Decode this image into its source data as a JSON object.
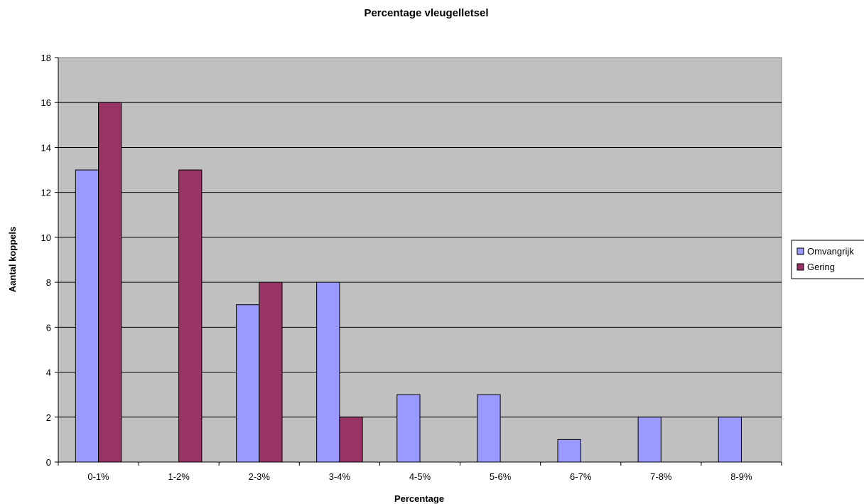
{
  "chart_data": {
    "type": "bar",
    "title": "Percentage vleugelletsel",
    "xlabel": "Percentage",
    "ylabel": "Aantal koppels",
    "categories": [
      "0-1%",
      "1-2%",
      "2-3%",
      "3-4%",
      "4-5%",
      "5-6%",
      "6-7%",
      "7-8%",
      "8-9%"
    ],
    "series": [
      {
        "name": "Omvangrijk",
        "color": "#9999ff",
        "values": [
          13,
          0,
          7,
          8,
          3,
          3,
          1,
          2,
          2
        ]
      },
      {
        "name": "Gering",
        "color": "#993366",
        "values": [
          16,
          13,
          8,
          2,
          0,
          0,
          0,
          0,
          0
        ]
      }
    ],
    "ylim": [
      0,
      18
    ],
    "yticks": [
      0,
      2,
      4,
      6,
      8,
      10,
      12,
      14,
      16,
      18
    ],
    "grid": true,
    "plot_background": "#c0c0c0",
    "legend_position": "right"
  }
}
